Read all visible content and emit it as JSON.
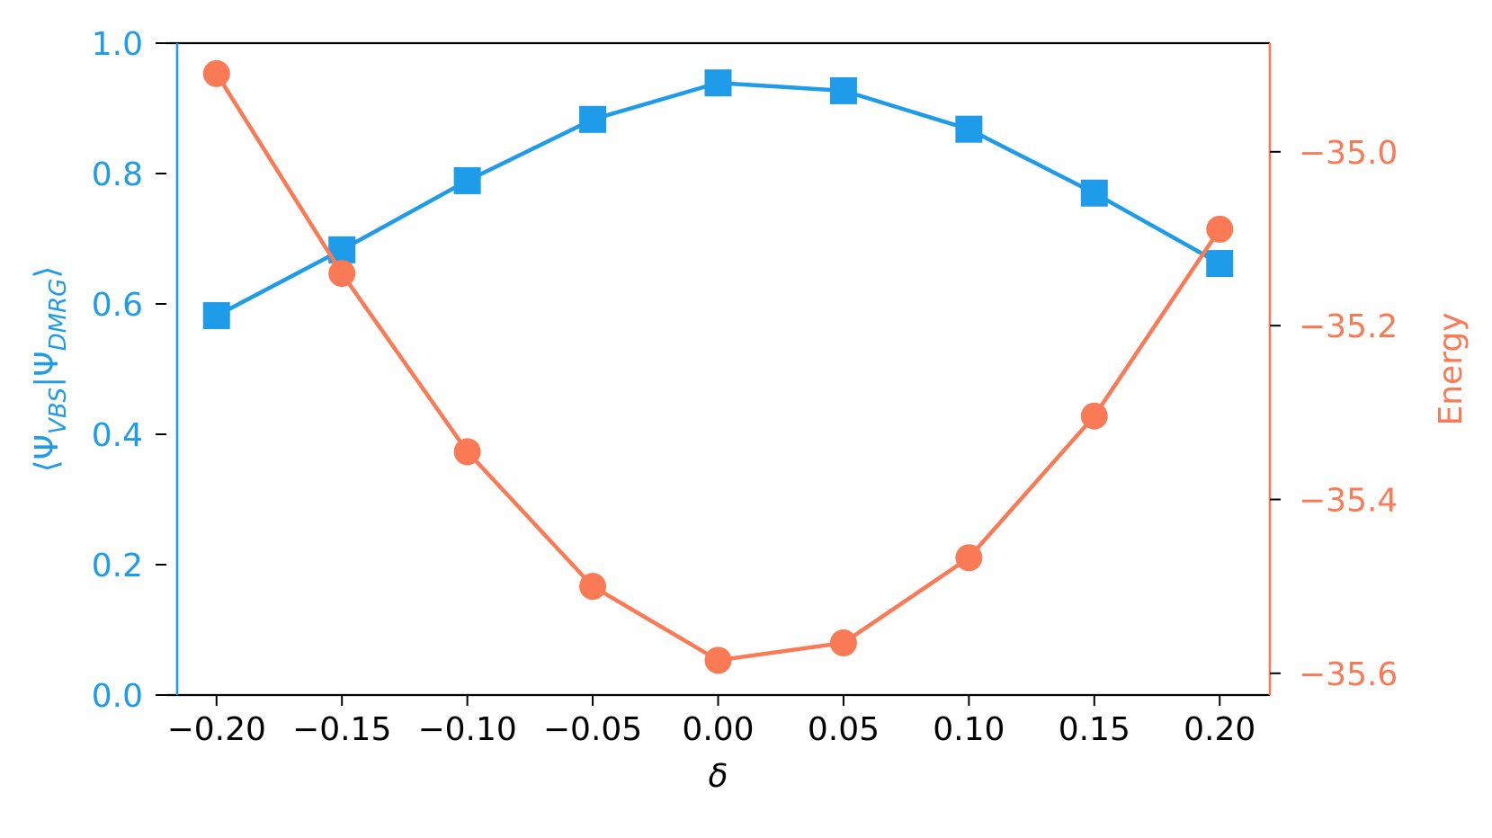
{
  "chart_data": {
    "type": "line",
    "xlabel": "δ",
    "x": [
      -0.2,
      -0.15,
      -0.1,
      -0.05,
      0.0,
      0.05,
      0.1,
      0.15,
      0.2
    ],
    "x_tick_labels": [
      "−0.20",
      "−0.15",
      "−0.10",
      "−0.05",
      "0.00",
      "0.05",
      "0.10",
      "0.15",
      "0.20"
    ],
    "xlim": [
      -0.22,
      0.22
    ],
    "left_axis": {
      "ylabel": "⟨Ψ_VBS|Ψ_DMRG⟩",
      "ylabel_main_1": "⟨Ψ",
      "ylabel_sub_1": "VBS",
      "ylabel_main_2": "|Ψ",
      "ylabel_sub_2": "DMRG",
      "ylabel_main_3": "⟩",
      "ylim": [
        0.0,
        1.0
      ],
      "ticks": [
        0.0,
        0.2,
        0.4,
        0.6,
        0.8,
        1.0
      ],
      "tick_labels": [
        "0.0",
        "0.2",
        "0.4",
        "0.6",
        "0.8",
        "1.0"
      ],
      "color": "#1e9be9"
    },
    "right_axis": {
      "ylabel": "Energy",
      "ylim": [
        -35.625,
        -34.875
      ],
      "ticks": [
        -35.0,
        -35.2,
        -35.4,
        -35.6
      ],
      "tick_labels": [
        "−35.0",
        "−35.2",
        "−35.4",
        "−35.6"
      ],
      "color": "#f97a55"
    },
    "series": [
      {
        "axis": "left",
        "marker": "square",
        "color": "#1e9be9",
        "values": [
          0.582,
          0.683,
          0.789,
          0.883,
          0.939,
          0.927,
          0.868,
          0.77,
          0.662
        ]
      },
      {
        "axis": "right",
        "marker": "circle",
        "color": "#f97a55",
        "values": [
          -34.91,
          -35.14,
          -35.345,
          -35.5,
          -35.585,
          -35.565,
          -35.467,
          -35.304,
          -35.089
        ]
      }
    ],
    "grid": false,
    "legend": "none"
  }
}
